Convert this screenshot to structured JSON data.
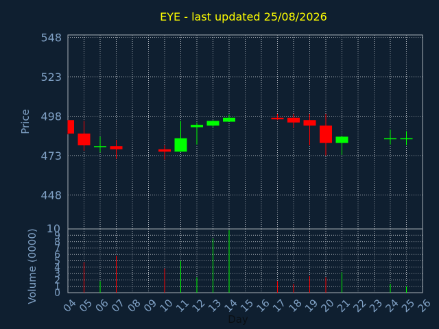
{
  "chart_data": {
    "type": "candlestick",
    "title": "EYE - last updated 25/08/2026",
    "price_axis": {
      "label": "Price",
      "ticks": [
        548,
        523,
        498,
        473,
        448
      ],
      "range": [
        426.5,
        549.5
      ]
    },
    "volume_axis": {
      "label": "Volume (0000)",
      "ticks": [
        0,
        1,
        2,
        3,
        4,
        5,
        6,
        7,
        8,
        9,
        10
      ],
      "range": [
        0,
        10
      ]
    },
    "x_axis": {
      "label": "Day",
      "ticks": [
        "04",
        "05",
        "06",
        "07",
        "08",
        "09",
        "10",
        "11",
        "12",
        "13",
        "14",
        "15",
        "16",
        "17",
        "18",
        "19",
        "20",
        "21",
        "22",
        "23",
        "24",
        "25",
        "26"
      ]
    },
    "candles": [
      {
        "day": "04",
        "open": 495.5,
        "high": 495.5,
        "low": 486.5,
        "close": 487.0,
        "volume": 0.0
      },
      {
        "day": "05",
        "open": 487.0,
        "high": 495.0,
        "low": 476.0,
        "close": 479.5,
        "volume": 4.8
      },
      {
        "day": "06",
        "open": 479.0,
        "high": 485.0,
        "low": 475.0,
        "close": 479.0,
        "volume": 1.8
      },
      {
        "day": "07",
        "open": 479.0,
        "high": 483.0,
        "low": 471.0,
        "close": 477.0,
        "volume": 5.8
      },
      {
        "day": "10",
        "open": 477.0,
        "high": 479.5,
        "low": 470.5,
        "close": 475.5,
        "volume": 3.8
      },
      {
        "day": "11",
        "open": 475.5,
        "high": 495.0,
        "low": 475.5,
        "close": 484.0,
        "volume": 5.0
      },
      {
        "day": "12",
        "open": 491.0,
        "high": 494.0,
        "low": 480.0,
        "close": 492.5,
        "volume": 2.4
      },
      {
        "day": "13",
        "open": 492.0,
        "high": 495.5,
        "low": 491.0,
        "close": 495.0,
        "volume": 8.5
      },
      {
        "day": "14",
        "open": 494.5,
        "high": 499.0,
        "low": 494.5,
        "close": 497.0,
        "volume": 9.8
      },
      {
        "day": "17",
        "open": 497.0,
        "high": 499.5,
        "low": 495.5,
        "close": 496.0,
        "volume": 1.8
      },
      {
        "day": "18",
        "open": 497.0,
        "high": 499.5,
        "low": 490.5,
        "close": 494.0,
        "volume": 1.4
      },
      {
        "day": "19",
        "open": 495.5,
        "high": 499.5,
        "low": 479.5,
        "close": 492.0,
        "volume": 2.6
      },
      {
        "day": "20",
        "open": 492.0,
        "high": 499.5,
        "low": 473.0,
        "close": 481.0,
        "volume": 2.4
      },
      {
        "day": "21",
        "open": 481.0,
        "high": 485.5,
        "low": 473.5,
        "close": 485.0,
        "volume": 3.2
      },
      {
        "day": "24",
        "open": 484.0,
        "high": 489.5,
        "low": 480.0,
        "close": 484.0,
        "volume": 1.4
      },
      {
        "day": "25",
        "open": 484.0,
        "high": 488.5,
        "low": 479.5,
        "close": 484.0,
        "volume": 1.0
      }
    ],
    "grid": true,
    "colors": {
      "background": "#0f1f30",
      "title": "#ffff00",
      "axis_text": "#7fa0c4",
      "grid": "#aab0b8",
      "up": "#00ff00",
      "down": "#ff0000"
    }
  }
}
